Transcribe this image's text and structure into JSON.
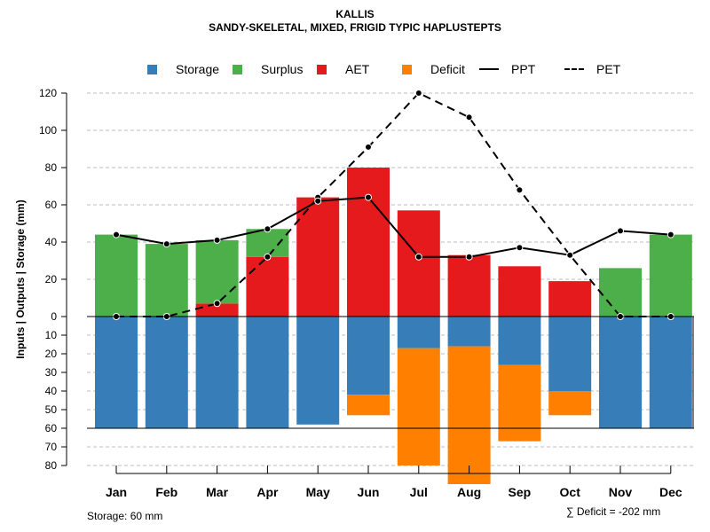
{
  "header": {
    "title": "KALLIS",
    "subtitle": "SANDY-SKELETAL, MIXED, FRIGID TYPIC HAPLUSTEPTS"
  },
  "legend": {
    "storage": "Storage",
    "surplus": "Surplus",
    "aet": "AET",
    "deficit": "Deficit",
    "ppt": "PPT",
    "pet": "PET"
  },
  "colors": {
    "storage": "#377EB8",
    "surplus": "#4DAF4A",
    "aet": "#E41A1C",
    "deficit": "#FF7F00",
    "line": "#000000",
    "grid": "#BEBEBE"
  },
  "footer": {
    "storage_note": "Storage: 60 mm",
    "deficit_note": "∑ Deficit = -202 mm"
  },
  "chart_data": {
    "type": "bar",
    "title": "KALLIS",
    "subtitle": "SANDY-SKELETAL, MIXED, FRIGID TYPIC HAPLUSTEPTS",
    "ylabel": "Inputs | Outputs | Storage    (mm)",
    "xlabel": "",
    "categories": [
      "Jan",
      "Feb",
      "Mar",
      "Apr",
      "May",
      "Jun",
      "Jul",
      "Aug",
      "Sep",
      "Oct",
      "Nov",
      "Dec"
    ],
    "ylim_upper": [
      0,
      120
    ],
    "ylim_lower": [
      0,
      80
    ],
    "upper_ticks": [
      0,
      20,
      40,
      60,
      80,
      100,
      120
    ],
    "lower_ticks": [
      10,
      20,
      30,
      40,
      50,
      60,
      70,
      80
    ],
    "grid": true,
    "legend_position": "top",
    "storage_capacity": 60,
    "series": [
      {
        "name": "AET",
        "values": [
          0,
          0,
          7,
          32,
          64,
          80,
          57,
          33,
          27,
          19,
          0,
          0
        ]
      },
      {
        "name": "Surplus",
        "values": [
          44,
          39,
          34,
          15,
          0,
          0,
          0,
          0,
          0,
          0,
          26,
          44
        ]
      },
      {
        "name": "Storage",
        "values": [
          60,
          60,
          60,
          60,
          58,
          42,
          17,
          16,
          26,
          40,
          60,
          60
        ]
      },
      {
        "name": "Deficit",
        "values": [
          0,
          0,
          0,
          0,
          0,
          11,
          63,
          74,
          41,
          13,
          0,
          0
        ]
      },
      {
        "name": "PPT",
        "values": [
          44,
          39,
          41,
          47,
          62,
          64,
          32,
          32,
          37,
          33,
          46,
          44
        ]
      },
      {
        "name": "PET",
        "values": [
          0,
          0,
          7,
          32,
          64,
          91,
          120,
          107,
          68,
          33,
          0,
          0
        ]
      }
    ]
  }
}
